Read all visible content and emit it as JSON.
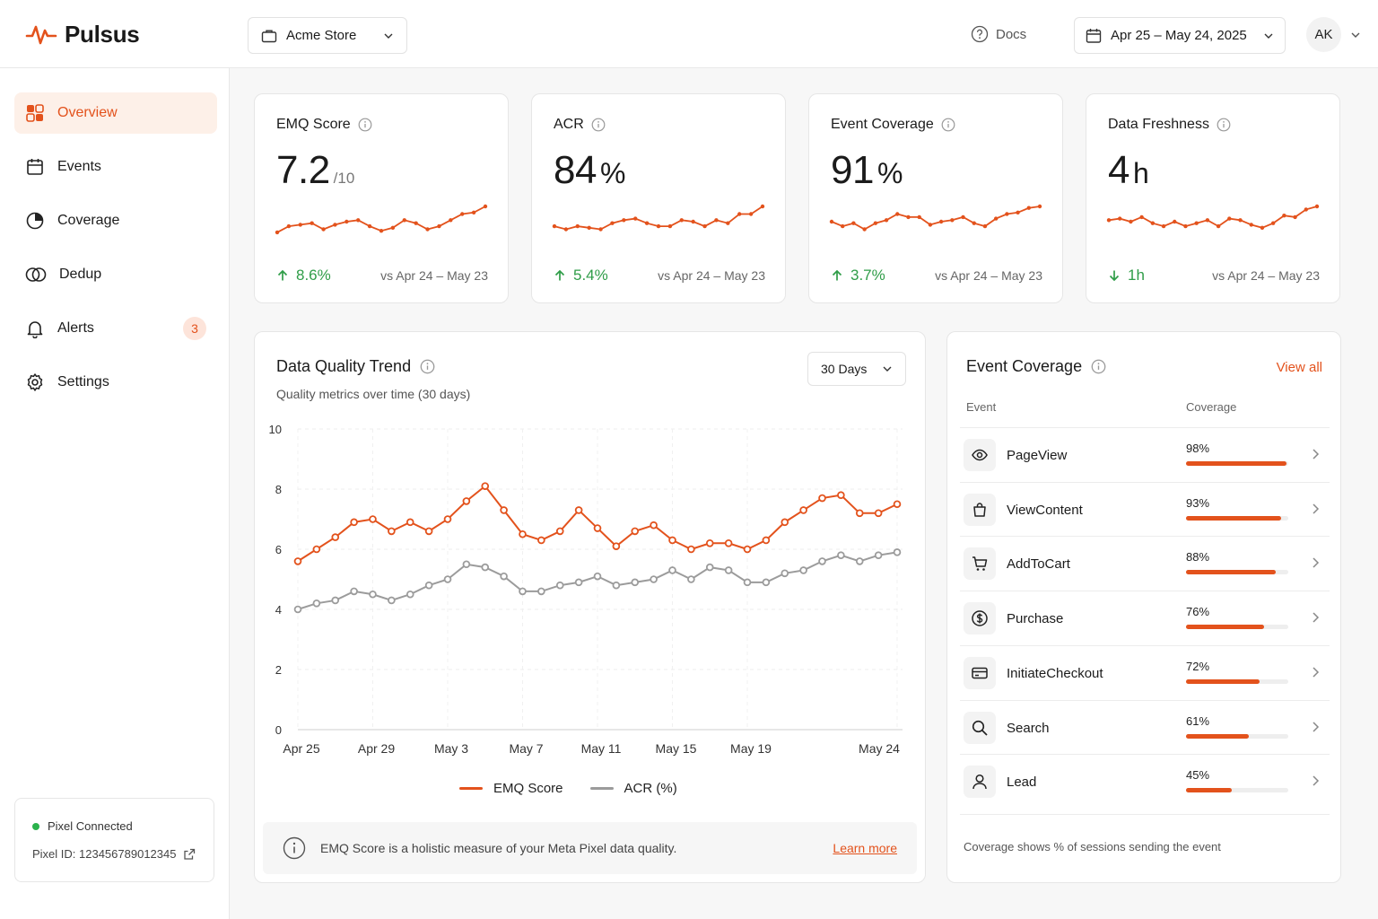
{
  "app": {
    "name": "Pulsus",
    "store": "Acme Store",
    "docs_label": "Docs",
    "date_range": "Apr 25 – May 24, 2025",
    "user_initials": "AK"
  },
  "sidebar": {
    "items": [
      {
        "label": "Overview",
        "icon": "grid-icon",
        "active": true
      },
      {
        "label": "Events",
        "icon": "calendar-icon"
      },
      {
        "label": "Coverage",
        "icon": "pie-icon"
      },
      {
        "label": "Dedup",
        "icon": "overlap-circles-icon"
      },
      {
        "label": "Alerts",
        "icon": "bell-icon",
        "badge": "3"
      },
      {
        "label": "Settings",
        "icon": "gear-icon"
      }
    ],
    "pixel": {
      "status": "Pixel Connected",
      "id_text": "Pixel ID: 123456789012345"
    }
  },
  "kpis": [
    {
      "title": "EMQ Score",
      "value": "7.2",
      "unit": "/10",
      "delta": "8.6%",
      "direction": "up",
      "compare": "vs Apr 24 – May 23"
    },
    {
      "title": "ACR",
      "value": "84",
      "unit": "%",
      "delta": "5.4%",
      "direction": "up",
      "compare": "vs Apr 24 – May 23"
    },
    {
      "title": "Event Coverage",
      "value": "91",
      "unit": "%",
      "delta": "3.7%",
      "direction": "up",
      "compare": "vs Apr 24 – May 23"
    },
    {
      "title": "Data Freshness",
      "value": "4",
      "unit": "h",
      "delta": "1h",
      "direction": "down",
      "compare": "vs Apr 24 – May 23"
    }
  ],
  "trend": {
    "title": "Data Quality Trend",
    "subtitle": "Quality metrics over time (30 days)",
    "range_label": "30 Days",
    "info_text": "EMQ Score is a holistic measure of your Meta Pixel data quality.",
    "learn_more": "Learn more"
  },
  "coverage": {
    "title": "Event Coverage",
    "view_all": "View all",
    "col_event": "Event",
    "col_coverage": "Coverage",
    "footnote": "Coverage shows % of sessions sending the event",
    "rows": [
      {
        "name": "PageView",
        "pct_label": "98%",
        "value": 0.98,
        "icon": "eye-icon"
      },
      {
        "name": "ViewContent",
        "pct_label": "93%",
        "value": 0.93,
        "icon": "shopping-bag-icon"
      },
      {
        "name": "AddToCart",
        "pct_label": "88%",
        "value": 0.88,
        "icon": "cart-icon"
      },
      {
        "name": "Purchase",
        "pct_label": "76%",
        "value": 0.76,
        "icon": "dollar-icon"
      },
      {
        "name": "InitiateCheckout",
        "pct_label": "72%",
        "value": 0.72,
        "icon": "credit-card-icon"
      },
      {
        "name": "Search",
        "pct_label": "61%",
        "value": 0.61,
        "icon": "search-icon"
      },
      {
        "name": "Lead",
        "pct_label": "45%",
        "value": 0.45,
        "icon": "user-icon"
      }
    ]
  },
  "chart_data": {
    "type": "line",
    "y_ticks": [
      "0",
      "2",
      "4",
      "6",
      "8",
      "10"
    ],
    "ylim": [
      0,
      10
    ],
    "x_ticks": [
      "Apr 25",
      "Apr 29",
      "May 3",
      "May 7",
      "May 11",
      "May 15",
      "May 19",
      "May 24"
    ],
    "grid": true,
    "legend_position": "bottom",
    "series": [
      {
        "name": "EMQ Score",
        "color": "#e3521c",
        "values": [
          5.6,
          6.0,
          6.4,
          6.9,
          7.0,
          6.6,
          6.9,
          6.6,
          7.0,
          7.6,
          8.1,
          7.3,
          6.5,
          6.3,
          6.6,
          7.3,
          6.7,
          6.1,
          6.6,
          6.8,
          6.3,
          6.0,
          6.2,
          6.2,
          6.0,
          6.3,
          6.9,
          7.3,
          7.7,
          7.8,
          7.2,
          7.2,
          7.5
        ]
      },
      {
        "name": "ACR (%)",
        "color": "#9b9b9b",
        "values": [
          4.0,
          4.2,
          4.3,
          4.6,
          4.5,
          4.3,
          4.5,
          4.8,
          5.0,
          5.5,
          5.4,
          5.1,
          4.6,
          4.6,
          4.8,
          4.9,
          5.1,
          4.8,
          4.9,
          5.0,
          5.3,
          5.0,
          5.4,
          5.3,
          4.9,
          4.9,
          5.2,
          5.3,
          5.6,
          5.8,
          5.6,
          5.8,
          5.9
        ]
      }
    ]
  },
  "sparklines": [
    [
      0.15,
      0.35,
      0.4,
      0.45,
      0.25,
      0.4,
      0.5,
      0.55,
      0.35,
      0.2,
      0.3,
      0.55,
      0.45,
      0.25,
      0.35,
      0.55,
      0.75,
      0.8,
      1.0
    ],
    [
      0.35,
      0.25,
      0.35,
      0.3,
      0.25,
      0.45,
      0.55,
      0.6,
      0.45,
      0.35,
      0.35,
      0.55,
      0.5,
      0.35,
      0.55,
      0.45,
      0.75,
      0.75,
      1.0
    ],
    [
      0.5,
      0.35,
      0.45,
      0.25,
      0.45,
      0.55,
      0.75,
      0.65,
      0.65,
      0.4,
      0.5,
      0.55,
      0.65,
      0.45,
      0.35,
      0.6,
      0.75,
      0.8,
      0.95,
      1.0
    ],
    [
      0.55,
      0.6,
      0.5,
      0.65,
      0.45,
      0.35,
      0.5,
      0.35,
      0.45,
      0.55,
      0.35,
      0.6,
      0.55,
      0.4,
      0.3,
      0.45,
      0.7,
      0.65,
      0.9,
      1.0
    ]
  ]
}
